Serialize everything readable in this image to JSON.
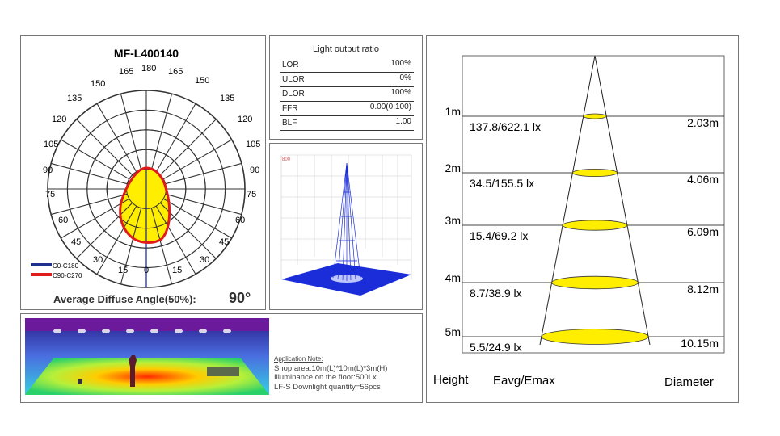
{
  "polar": {
    "title": "MF-L400140",
    "angle_labels": [
      "180",
      "165",
      "165",
      "150",
      "150",
      "135",
      "135",
      "120",
      "120",
      "105",
      "105",
      "90",
      "90",
      "75",
      "75",
      "60",
      "60",
      "45",
      "45",
      "30",
      "30",
      "15",
      "0",
      "15"
    ],
    "legend": [
      {
        "label": "C0-C180",
        "color": "#1f2f8f"
      },
      {
        "label": "C90-C270",
        "color": "#e01b1b"
      }
    ],
    "beam_label": "Average Diffuse Angle(50%):",
    "beam_value": "90°",
    "fill_color": "#ffee00"
  },
  "ratios": {
    "title": "Light output ratio",
    "rows": [
      {
        "label": "LOR",
        "value": "100%"
      },
      {
        "label": "ULOR",
        "value": "0%"
      },
      {
        "label": "DLOR",
        "value": "100%"
      },
      {
        "label": "FFR",
        "value": "0.00(0:100)"
      },
      {
        "label": "BLF",
        "value": "1.00"
      }
    ]
  },
  "plot3d": {
    "corner_label": "800",
    "color": "#1a2dd8"
  },
  "application": {
    "heading": "Application Note:",
    "lines": [
      "Shop area:10m(L)*10m(L)*3m(H)",
      "Illuminance on the floor:500Lx",
      "LF-S Downlight quantity=56pcs"
    ]
  },
  "cone": {
    "rows": [
      {
        "height": "1m",
        "lux": "137.8/622.1 lx",
        "diameter": "2.03m"
      },
      {
        "height": "2m",
        "lux": "34.5/155.5 lx",
        "diameter": "4.06m"
      },
      {
        "height": "3m",
        "lux": "15.4/69.2 lx",
        "diameter": "6.09m"
      },
      {
        "height": "4m",
        "lux": "8.7/38.9 lx",
        "diameter": "8.12m"
      },
      {
        "height": "5m",
        "lux": "5.5/24.9 lx",
        "diameter": "10.15m"
      }
    ],
    "footer": {
      "height": "Height",
      "lux": "Eavg/Emax",
      "diameter": "Diameter"
    },
    "spot_color": "#ffee00"
  }
}
